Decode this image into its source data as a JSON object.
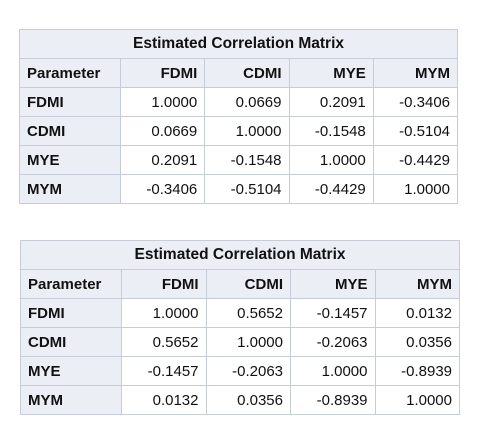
{
  "matrices": [
    {
      "title": "Estimated Correlation Matrix",
      "corner_label": "Parameter",
      "columns": [
        "FDMI",
        "CDMI",
        "MYE",
        "MYM"
      ],
      "rows": [
        {
          "label": "FDMI",
          "values": [
            "1.0000",
            "0.0669",
            "0.2091",
            "-0.3406"
          ]
        },
        {
          "label": "CDMI",
          "values": [
            "0.0669",
            "1.0000",
            "-0.1548",
            "-0.5104"
          ]
        },
        {
          "label": "MYE",
          "values": [
            "0.2091",
            "-0.1548",
            "1.0000",
            "-0.4429"
          ]
        },
        {
          "label": "MYM",
          "values": [
            "-0.3406",
            "-0.5104",
            "-0.4429",
            "1.0000"
          ]
        }
      ]
    },
    {
      "title": "Estimated Correlation Matrix",
      "corner_label": "Parameter",
      "columns": [
        "FDMI",
        "CDMI",
        "MYE",
        "MYM"
      ],
      "rows": [
        {
          "label": "FDMI",
          "values": [
            "1.0000",
            "0.5652",
            "-0.1457",
            "0.0132"
          ]
        },
        {
          "label": "CDMI",
          "values": [
            "0.5652",
            "1.0000",
            "-0.2063",
            "0.0356"
          ]
        },
        {
          "label": "MYE",
          "values": [
            "-0.1457",
            "-0.2063",
            "1.0000",
            "-0.8939"
          ]
        },
        {
          "label": "MYM",
          "values": [
            "0.0132",
            "0.0356",
            "-0.8939",
            "1.0000"
          ]
        }
      ]
    }
  ],
  "colors": {
    "header_background": "#ebeef4",
    "border": "#c6cdd8",
    "cell_background": "#ffffff"
  }
}
